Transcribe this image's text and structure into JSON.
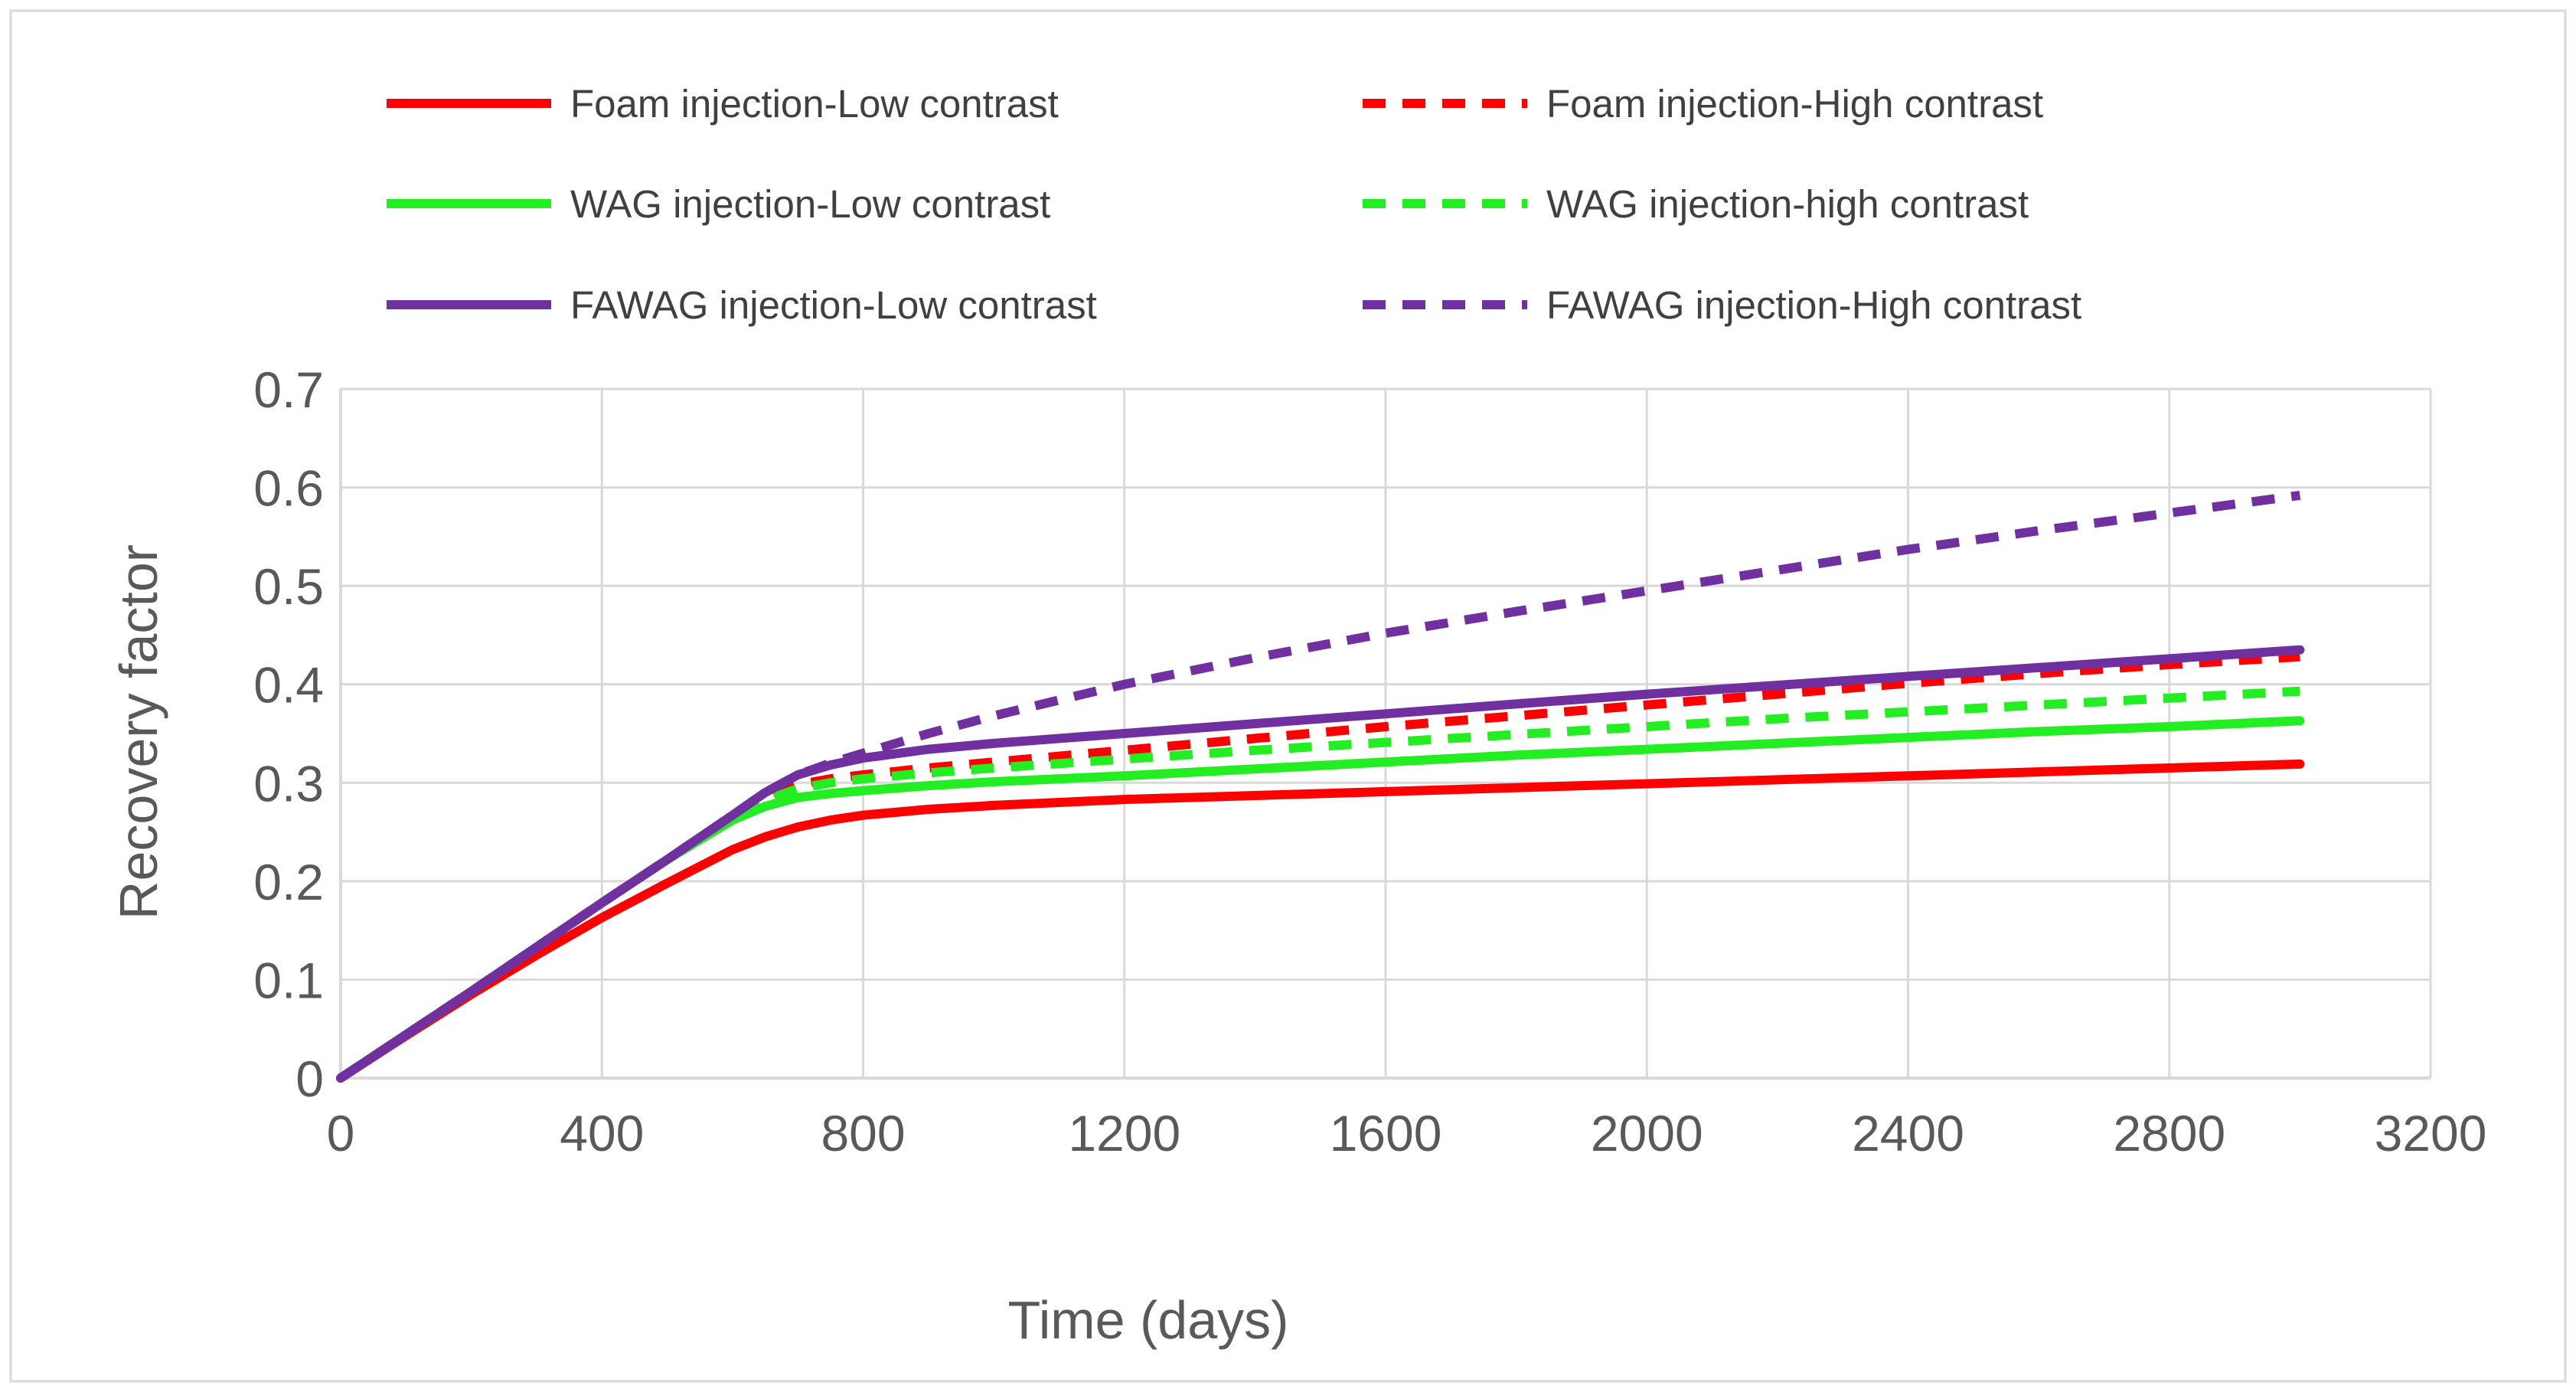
{
  "chart_data": {
    "type": "line",
    "title": "",
    "xlabel": "Time (days)",
    "ylabel": "Recovery factor",
    "xlim": [
      0,
      3200
    ],
    "ylim": [
      0,
      0.7
    ],
    "x_ticks": [
      "0",
      "400",
      "800",
      "1200",
      "1600",
      "2000",
      "2400",
      "2800",
      "3200"
    ],
    "y_ticks": [
      "0",
      "0.1",
      "0.2",
      "0.3",
      "0.4",
      "0.5",
      "0.6",
      "0.7"
    ],
    "grid": true,
    "legend_position": "top",
    "x": [
      0,
      100,
      200,
      300,
      400,
      500,
      600,
      650,
      700,
      750,
      800,
      900,
      1000,
      1200,
      1400,
      1600,
      1800,
      2000,
      2200,
      2400,
      2600,
      2800,
      3000
    ],
    "series": [
      {
        "name": "Foam injection-Low contrast",
        "color": "#ff0000",
        "dash": "solid",
        "values": [
          0,
          0.043,
          0.085,
          0.125,
          0.163,
          0.198,
          0.232,
          0.245,
          0.255,
          0.262,
          0.267,
          0.273,
          0.277,
          0.283,
          0.287,
          0.291,
          0.295,
          0.299,
          0.303,
          0.307,
          0.311,
          0.315,
          0.319
        ]
      },
      {
        "name": "Foam injection-High contrast",
        "color": "#ff0000",
        "dash": "dashed",
        "values": [
          0,
          0.044,
          0.088,
          0.133,
          0.178,
          0.222,
          0.264,
          0.284,
          0.298,
          0.304,
          0.308,
          0.315,
          0.321,
          0.333,
          0.345,
          0.357,
          0.368,
          0.379,
          0.39,
          0.401,
          0.411,
          0.42,
          0.428
        ]
      },
      {
        "name": "WAG injection-Low contrast",
        "color": "#22ee22",
        "dash": "solid",
        "values": [
          0,
          0.044,
          0.088,
          0.133,
          0.178,
          0.222,
          0.262,
          0.276,
          0.285,
          0.289,
          0.292,
          0.297,
          0.301,
          0.307,
          0.314,
          0.321,
          0.328,
          0.334,
          0.34,
          0.346,
          0.352,
          0.357,
          0.363
        ]
      },
      {
        "name": "WAG injection-high contrast",
        "color": "#22ee22",
        "dash": "dashed",
        "values": [
          0,
          0.044,
          0.088,
          0.133,
          0.178,
          0.222,
          0.264,
          0.282,
          0.294,
          0.3,
          0.304,
          0.31,
          0.315,
          0.324,
          0.333,
          0.341,
          0.349,
          0.357,
          0.365,
          0.372,
          0.379,
          0.386,
          0.393
        ]
      },
      {
        "name": "FAWAG injection-Low contrast",
        "color": "#7030a0",
        "dash": "solid",
        "values": [
          0,
          0.044,
          0.088,
          0.133,
          0.178,
          0.222,
          0.267,
          0.29,
          0.308,
          0.318,
          0.325,
          0.334,
          0.34,
          0.35,
          0.36,
          0.37,
          0.38,
          0.39,
          0.399,
          0.408,
          0.417,
          0.426,
          0.435
        ]
      },
      {
        "name": "FAWAG injection-High contrast",
        "color": "#7030a0",
        "dash": "dashed",
        "values": [
          0,
          0.044,
          0.088,
          0.133,
          0.178,
          0.222,
          0.267,
          0.29,
          0.308,
          0.32,
          0.33,
          0.35,
          0.368,
          0.4,
          0.427,
          0.452,
          0.474,
          0.495,
          0.516,
          0.537,
          0.556,
          0.574,
          0.592
        ]
      }
    ]
  }
}
